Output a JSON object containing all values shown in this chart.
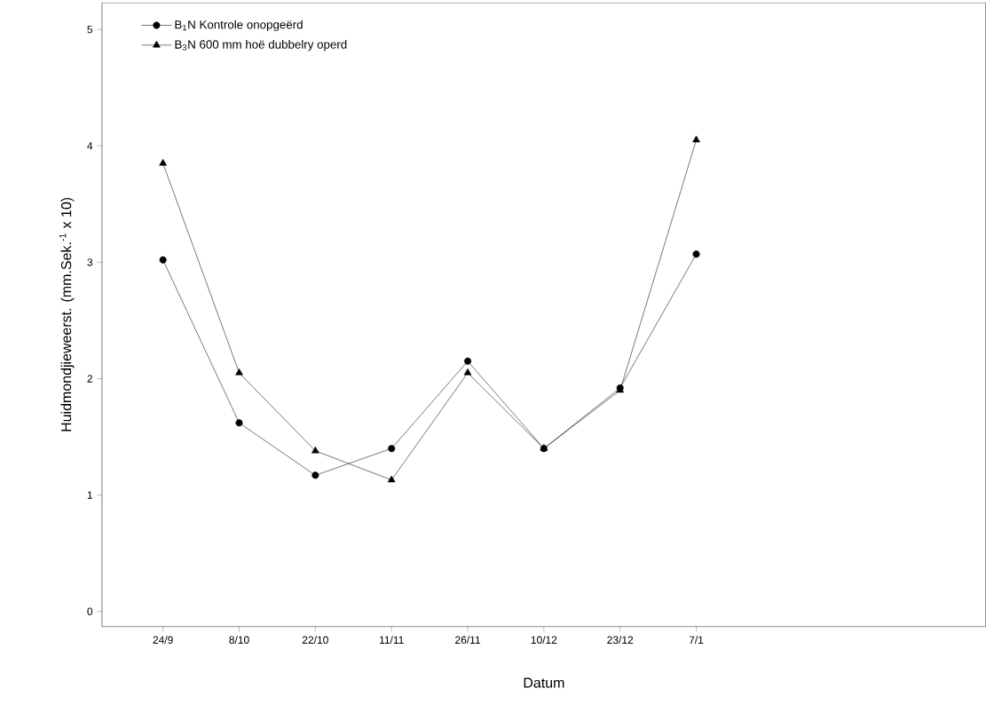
{
  "chart_data": {
    "type": "line",
    "xlabel": "Datum",
    "ylabel": "Huidmondjieweerst. (mm.Sek.$^{-1}$ x 10)",
    "categories": [
      "24/9",
      "8/10",
      "22/10",
      "11/11",
      "26/11",
      "10/12",
      "23/12",
      "7/1"
    ],
    "series": [
      {
        "name": "B$_{1}$N     Kontrole onopgeërd",
        "color": "#000000",
        "marker": "circle",
        "values": [
          3.02,
          1.62,
          1.17,
          1.4,
          2.15,
          1.4,
          1.92,
          3.07
        ]
      },
      {
        "name": "B$_{3}$N     600 mm hoë dubbelry operd",
        "color": "#000000",
        "marker": "triangle",
        "values": [
          3.85,
          2.05,
          1.38,
          1.13,
          2.05,
          1.4,
          1.9,
          4.05
        ]
      }
    ],
    "ylim": [
      -0.13,
      5.23
    ],
    "yticks": [
      0,
      1,
      2,
      3,
      4,
      5
    ],
    "legend": "top left",
    "grid": false,
    "line_style": "solid"
  }
}
